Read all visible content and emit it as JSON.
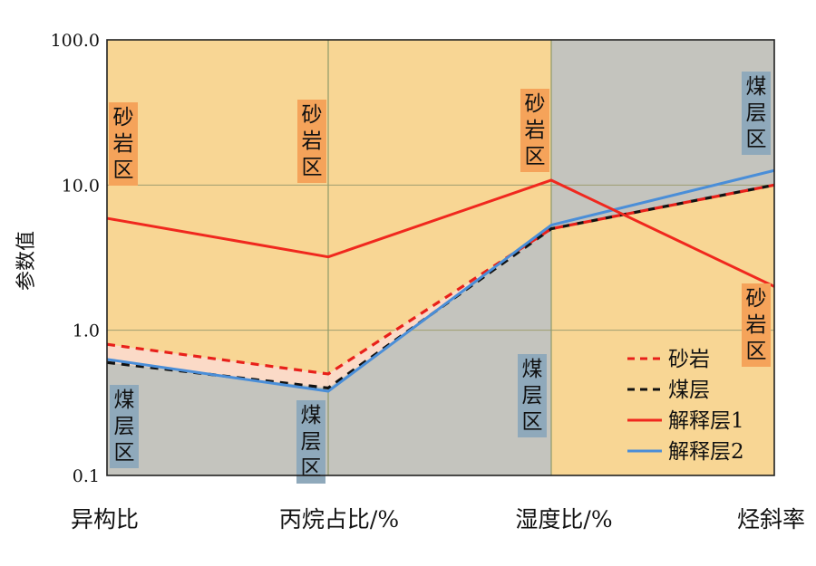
{
  "chart_data": {
    "type": "line",
    "y_scale": "log",
    "ylim": [
      0.1,
      100
    ],
    "ylabel": "参数值",
    "y_ticks": [
      "0.1",
      "1.0",
      "10.0",
      "100.0"
    ],
    "categories": [
      "异构比",
      "丙烷占比/%",
      "湿度比/%",
      "烃斜率"
    ],
    "grid": true,
    "legend_position": "bottom-right",
    "series": [
      {
        "name": "砂岩",
        "color": "#e8201a",
        "dash": "dashed",
        "values": [
          0.8,
          0.5,
          5.0,
          10.0
        ]
      },
      {
        "name": "煤层",
        "color": "#111111",
        "dash": "dashed",
        "values": [
          0.6,
          0.4,
          5.0,
          10.0
        ]
      },
      {
        "name": "解释层1",
        "color": "#f0281e",
        "dash": "solid",
        "values": [
          5.9,
          3.2,
          10.8,
          2.0
        ]
      },
      {
        "name": "解释层2",
        "color": "#4a8ed8",
        "dash": "solid",
        "values": [
          0.63,
          0.38,
          5.3,
          12.6
        ]
      }
    ],
    "zones": [
      {
        "label": "砂岩区",
        "type": "sandstone"
      },
      {
        "label": "砂岩区",
        "type": "sandstone"
      },
      {
        "label": "砂岩区",
        "type": "sandstone"
      },
      {
        "label": "砂岩区",
        "type": "sandstone"
      },
      {
        "label": "煤层区",
        "type": "coal"
      },
      {
        "label": "煤层区",
        "type": "coal"
      },
      {
        "label": "煤层区",
        "type": "coal"
      },
      {
        "label": "煤层区",
        "type": "coal"
      }
    ],
    "colors": {
      "sandstone_bg": "#f8d694",
      "coal_bg": "#c4c4be",
      "sand_label_bg": "#f5a35a",
      "coal_label_bg": "#8fa9bb",
      "band_fill": "#fbdad0"
    }
  }
}
